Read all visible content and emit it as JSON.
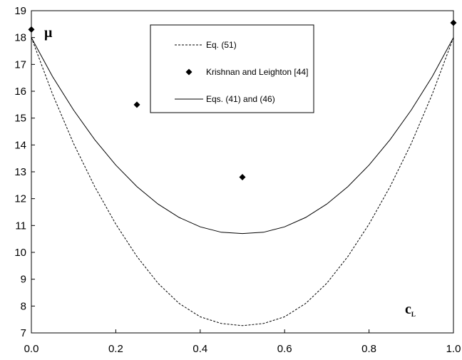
{
  "chart_data": {
    "type": "line",
    "title": "",
    "ylabel": "μ",
    "xlabel": "c",
    "xlabel_subscript": "L",
    "xlim": [
      0.0,
      1.0
    ],
    "ylim": [
      7,
      19
    ],
    "x_ticks": [
      "0.0",
      "0.2",
      "0.4",
      "0.6",
      "0.8",
      "1.0"
    ],
    "y_ticks": [
      "7",
      "8",
      "9",
      "10",
      "11",
      "12",
      "13",
      "14",
      "15",
      "16",
      "17",
      "18",
      "19"
    ],
    "grid": false,
    "legend_position": "top-center",
    "series": [
      {
        "name": "Eq. (51)",
        "style": "dashed",
        "color": "#000000",
        "x": [
          0.0,
          0.05,
          0.1,
          0.15,
          0.2,
          0.25,
          0.3,
          0.35,
          0.4,
          0.45,
          0.5,
          0.55,
          0.6,
          0.65,
          0.7,
          0.75,
          0.8,
          0.85,
          0.9,
          0.95,
          1.0
        ],
        "y": [
          18.0,
          15.9,
          14.05,
          12.45,
          11.05,
          9.85,
          8.85,
          8.1,
          7.6,
          7.35,
          7.27,
          7.35,
          7.6,
          8.1,
          8.85,
          9.85,
          11.05,
          12.45,
          14.05,
          15.9,
          18.0
        ]
      },
      {
        "name": "Krishnan and Leighton [44]",
        "style": "markers",
        "marker": "diamond",
        "color": "#000000",
        "x": [
          0.0,
          0.25,
          0.5,
          1.0
        ],
        "y": [
          18.3,
          15.5,
          12.8,
          18.55
        ]
      },
      {
        "name": "Eqs. (41) and (46)",
        "style": "solid",
        "color": "#000000",
        "x": [
          0.0,
          0.05,
          0.1,
          0.15,
          0.2,
          0.25,
          0.3,
          0.35,
          0.4,
          0.45,
          0.5,
          0.55,
          0.6,
          0.65,
          0.7,
          0.75,
          0.8,
          0.85,
          0.9,
          0.95,
          1.0
        ],
        "y": [
          18.0,
          16.55,
          15.3,
          14.2,
          13.25,
          12.45,
          11.8,
          11.3,
          10.95,
          10.75,
          10.7,
          10.75,
          10.95,
          11.3,
          11.8,
          12.45,
          13.25,
          14.2,
          15.3,
          16.55,
          18.0
        ]
      }
    ]
  }
}
